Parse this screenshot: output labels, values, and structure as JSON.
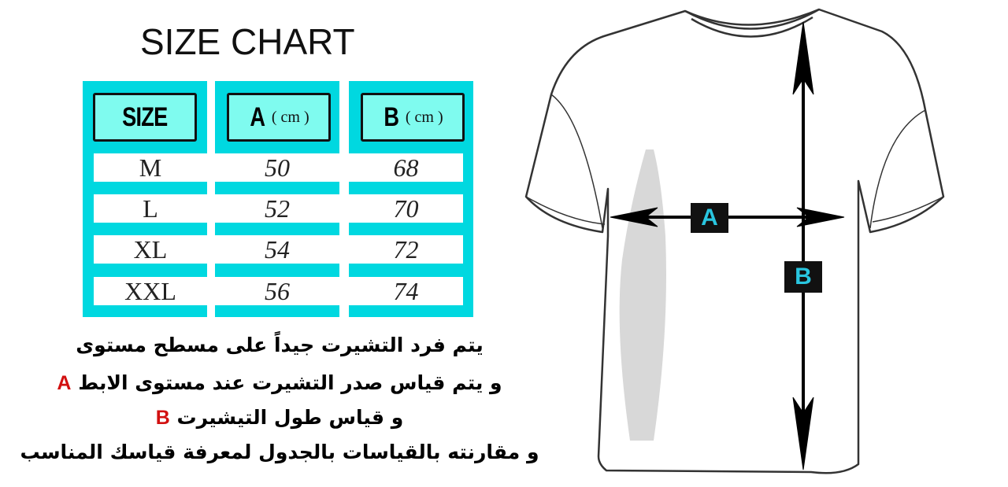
{
  "title": "SIZE CHART",
  "table": {
    "headers": [
      {
        "label": "SIZE",
        "unit": ""
      },
      {
        "label": "A",
        "unit": "( cm )"
      },
      {
        "label": "B",
        "unit": "( cm )"
      }
    ],
    "rows": [
      {
        "size": "M",
        "a": "50",
        "b": "68"
      },
      {
        "size": "L",
        "a": "52",
        "b": "70"
      },
      {
        "size": "XL",
        "a": "54",
        "b": "72"
      },
      {
        "size": "XXL",
        "a": "56",
        "b": "74"
      }
    ]
  },
  "instructions": [
    {
      "text": "يتم فرد التشيرت جيداً على مسطح مستوى",
      "marker": ""
    },
    {
      "text": "و يتم قياس صدر التشيرت عند مستوى الابط",
      "marker": "A"
    },
    {
      "text": "و قياس طول التيشيرت",
      "marker": "B"
    },
    {
      "text": "و مقارنته بالقياسات بالجدول لمعرفة قياسك المناسب",
      "marker": ""
    }
  ],
  "diagram": {
    "label_a": "A",
    "label_b": "B"
  },
  "colors": {
    "table_cyan": "#00d8e0",
    "header_fill": "#7ffbef",
    "marker_red": "#d21010",
    "label_text": "#29c6e0"
  }
}
